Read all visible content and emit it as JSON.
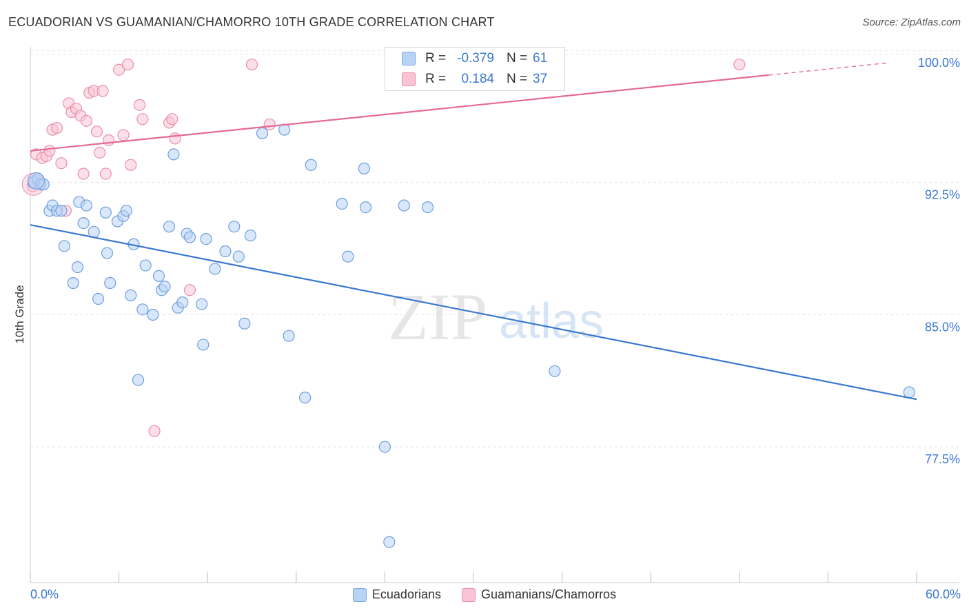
{
  "title": "ECUADORIAN VS GUAMANIAN/CHAMORRO 10TH GRADE CORRELATION CHART",
  "source": "Source: ZipAtlas.com",
  "watermark": {
    "zip": "ZIP",
    "atlas": "atlas"
  },
  "colors": {
    "blue": "#3a78d0",
    "blue_fill": "#b8d3f5",
    "pink": "#e66a93",
    "pink_fill": "#f9c4d3"
  },
  "legend_inset": {
    "rows": [
      {
        "r_label": "R =",
        "r_value": "-0.379",
        "n_label": "N =",
        "n_value": "61"
      },
      {
        "r_label": "R =",
        "r_value": "0.184",
        "n_label": "N =",
        "n_value": "37"
      }
    ]
  },
  "legend_bottom": {
    "series1": "Ecuadorians",
    "series2": "Guamanians/Chamorros"
  },
  "chart_data": {
    "type": "scatter",
    "title": "ECUADORIAN VS GUAMANIAN/CHAMORRO 10TH GRADE CORRELATION CHART",
    "xlabel": "",
    "ylabel": "10th Grade",
    "xlim": [
      0,
      60
    ],
    "ylim": [
      70.5,
      100.9
    ],
    "x_tick_labels": [
      "0.0%",
      "60.0%"
    ],
    "y_ticks": [
      77.5,
      85.0,
      92.5,
      100.0
    ],
    "y_tick_labels": [
      "77.5%",
      "85.0%",
      "92.5%",
      "100.0%"
    ],
    "grid": true,
    "series": [
      {
        "name": "Ecuadorians",
        "r": -0.379,
        "n": 61,
        "trend": {
          "x": [
            0,
            60
          ],
          "y": [
            90.8,
            80.9
          ]
        },
        "points": [
          [
            0.2,
            93.2
          ],
          [
            0.5,
            93.4
          ],
          [
            0.7,
            93.1
          ],
          [
            0.9,
            93.1
          ],
          [
            1.3,
            91.6
          ],
          [
            1.5,
            91.9
          ],
          [
            1.8,
            91.6
          ],
          [
            2.3,
            89.6
          ],
          [
            3.3,
            92.1
          ],
          [
            3.8,
            91.9
          ],
          [
            3.6,
            90.9
          ],
          [
            4.3,
            90.4
          ],
          [
            5.1,
            91.5
          ],
          [
            5.2,
            89.2
          ],
          [
            3.2,
            88.4
          ],
          [
            2.9,
            87.5
          ],
          [
            4.6,
            86.6
          ],
          [
            5.4,
            87.5
          ],
          [
            5.9,
            91.0
          ],
          [
            6.3,
            91.3
          ],
          [
            6.5,
            91.6
          ],
          [
            7.0,
            89.7
          ],
          [
            6.8,
            86.8
          ],
          [
            7.6,
            86.0
          ],
          [
            7.8,
            88.5
          ],
          [
            8.3,
            85.7
          ],
          [
            8.7,
            87.9
          ],
          [
            8.9,
            87.1
          ],
          [
            9.1,
            87.3
          ],
          [
            9.4,
            90.7
          ],
          [
            9.7,
            94.8
          ],
          [
            10.0,
            86.1
          ],
          [
            10.3,
            86.4
          ],
          [
            10.6,
            90.3
          ],
          [
            10.8,
            90.1
          ],
          [
            11.6,
            86.3
          ],
          [
            11.7,
            84.0
          ],
          [
            11.9,
            90.0
          ],
          [
            12.5,
            88.3
          ],
          [
            13.2,
            89.3
          ],
          [
            13.8,
            90.7
          ],
          [
            14.1,
            89.0
          ],
          [
            14.5,
            85.2
          ],
          [
            14.9,
            90.2
          ],
          [
            7.3,
            82.0
          ],
          [
            15.7,
            96.0
          ],
          [
            17.2,
            96.2
          ],
          [
            17.5,
            84.5
          ],
          [
            18.6,
            81.0
          ],
          [
            19.0,
            94.2
          ],
          [
            21.1,
            92.0
          ],
          [
            21.5,
            89.0
          ],
          [
            22.6,
            94.0
          ],
          [
            22.7,
            91.8
          ],
          [
            24.0,
            78.2
          ],
          [
            24.3,
            72.8
          ],
          [
            25.3,
            91.9
          ],
          [
            26.9,
            91.8
          ],
          [
            35.5,
            82.5
          ],
          [
            59.5,
            81.3
          ],
          [
            2.1,
            91.6
          ]
        ]
      },
      {
        "name": "Guamanians/Chamorros",
        "r": 0.184,
        "n": 37,
        "trend": {
          "x": [
            0,
            50
          ],
          "y": [
            95.0,
            99.3
          ]
        },
        "points": [
          [
            0.4,
            94.8
          ],
          [
            0.8,
            94.6
          ],
          [
            1.1,
            94.7
          ],
          [
            1.3,
            95.0
          ],
          [
            1.5,
            96.2
          ],
          [
            1.8,
            96.3
          ],
          [
            2.1,
            94.3
          ],
          [
            2.4,
            91.6
          ],
          [
            2.6,
            97.7
          ],
          [
            2.8,
            97.2
          ],
          [
            3.1,
            97.4
          ],
          [
            3.4,
            97.0
          ],
          [
            3.6,
            93.7
          ],
          [
            3.8,
            96.7
          ],
          [
            4.0,
            98.3
          ],
          [
            4.3,
            98.4
          ],
          [
            4.5,
            96.1
          ],
          [
            4.7,
            94.9
          ],
          [
            4.9,
            98.4
          ],
          [
            5.1,
            93.7
          ],
          [
            5.3,
            95.6
          ],
          [
            6.0,
            99.6
          ],
          [
            6.3,
            95.9
          ],
          [
            6.6,
            99.9
          ],
          [
            6.8,
            94.2
          ],
          [
            7.4,
            97.6
          ],
          [
            7.6,
            96.8
          ],
          [
            8.4,
            79.1
          ],
          [
            9.4,
            96.6
          ],
          [
            9.6,
            96.8
          ],
          [
            9.8,
            95.7
          ],
          [
            10.8,
            87.1
          ],
          [
            15.0,
            99.9
          ],
          [
            16.2,
            96.5
          ],
          [
            48.0,
            99.9
          ],
          [
            0.15,
            93.0
          ],
          [
            0.3,
            93.3
          ]
        ]
      }
    ]
  }
}
